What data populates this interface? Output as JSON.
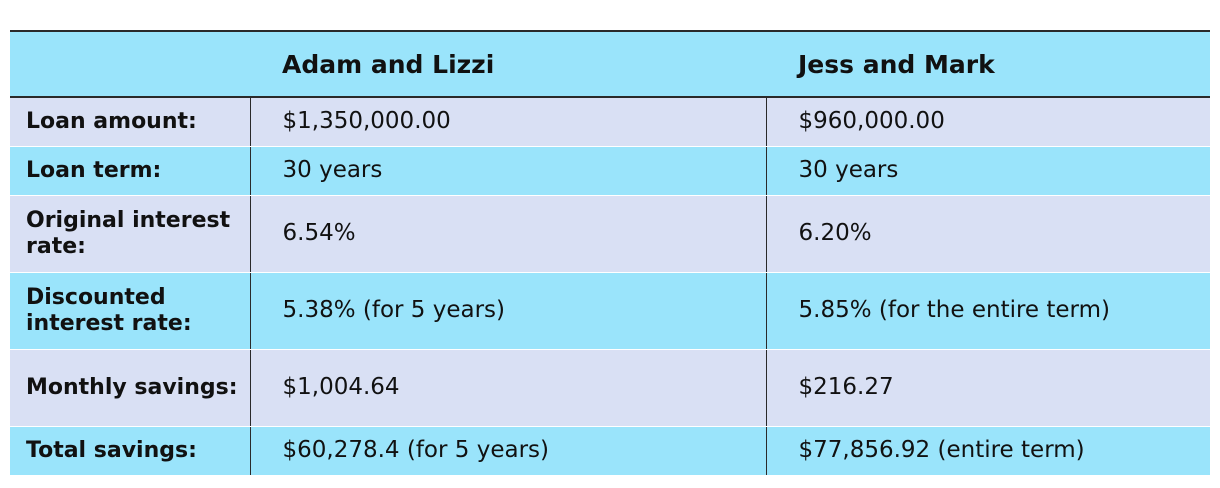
{
  "table": {
    "header": {
      "label": "",
      "col_adam": "Adam and Lizzi",
      "col_jess": "Jess and Mark"
    },
    "rows": [
      {
        "label": "Loan amount:",
        "adam": "$1,350,000.00",
        "jess": "$960,000.00"
      },
      {
        "label": "Loan term:",
        "adam": "30 years",
        "jess": "30 years"
      },
      {
        "label": "Original interest rate:",
        "adam": "6.54%",
        "jess": "6.20%"
      },
      {
        "label": "Discounted interest rate:",
        "adam": "5.38% (for 5 years)",
        "jess": "5.85% (for the entire term)"
      },
      {
        "label": "Monthly savings:",
        "adam": "$1,004.64",
        "jess": "$216.27"
      },
      {
        "label": "Total savings:",
        "adam": "$60,278.4 (for 5 years)",
        "jess": "$77,856.92 (entire term)"
      }
    ]
  },
  "colors": {
    "header_bg": "#9ae4fb",
    "row_lavender": "#d9e0f4",
    "row_cyan": "#9ae4fb",
    "border": "#2a2a2a"
  }
}
